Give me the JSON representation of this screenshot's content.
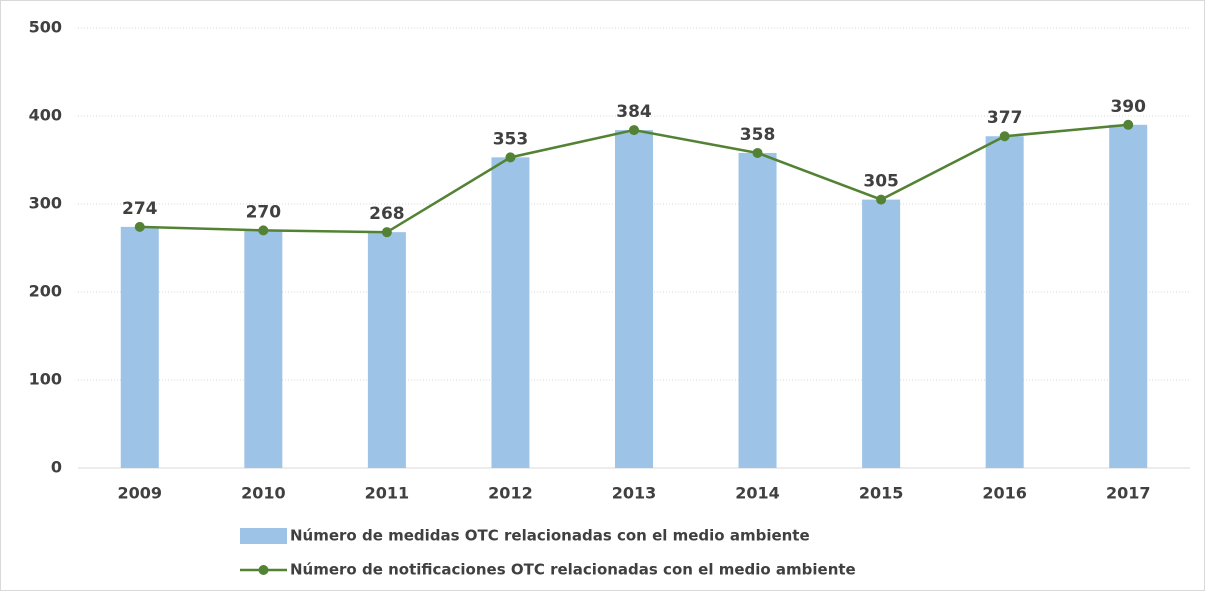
{
  "chart_data": {
    "type": "bar",
    "categories": [
      "2009",
      "2010",
      "2011",
      "2012",
      "2013",
      "2014",
      "2015",
      "2016",
      "2017"
    ],
    "series": [
      {
        "name": "Número de medidas OTC relacionadas con el medio ambiente",
        "color": "#9dc3e6",
        "values": [
          274,
          270,
          268,
          353,
          384,
          358,
          305,
          377,
          390
        ]
      },
      {
        "name": "Número de notificaciones OTC relacionadas con el medio ambiente",
        "color": "#548235",
        "type": "line",
        "values": [
          274,
          270,
          268,
          353,
          384,
          358,
          305,
          377,
          390
        ]
      }
    ],
    "ylim": [
      0,
      500
    ],
    "yticks": [
      0,
      100,
      200,
      300,
      400,
      500
    ],
    "grid": true
  }
}
